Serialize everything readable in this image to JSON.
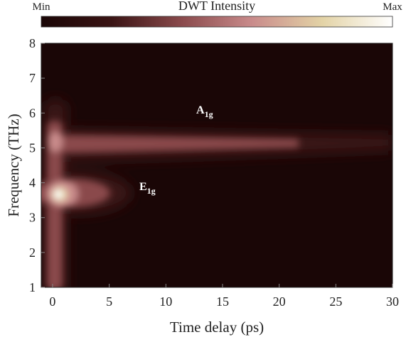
{
  "chart_data": {
    "type": "heatmap",
    "colorbar": {
      "title": "DWT Intensity",
      "min_label": "Min",
      "max_label": "Max",
      "colors": [
        "#1a0606",
        "#3a1414",
        "#8a4a4c",
        "#c98b8b",
        "#e3d3a6",
        "#ffffff"
      ]
    },
    "xlabel": "Time delay (ps)",
    "ylabel": "Frequency (THz)",
    "xlim": [
      -1,
      30
    ],
    "xticks": [
      0,
      5,
      10,
      15,
      20,
      25,
      30
    ],
    "ylim": [
      1,
      8
    ],
    "yticks": [
      1,
      2,
      3,
      4,
      5,
      6,
      7,
      8
    ],
    "annotations": [
      {
        "text": "A",
        "subscript": "1g"
      },
      {
        "text": "E",
        "subscript": "1g"
      }
    ]
  }
}
